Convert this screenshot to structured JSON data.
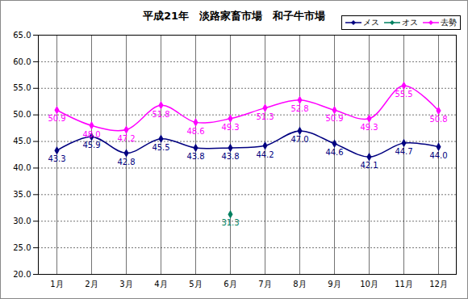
{
  "chart_data": {
    "type": "line",
    "title": "平成21年　淡路家畜市場　和子牛市場",
    "categories": [
      "1月",
      "2月",
      "3月",
      "4月",
      "5月",
      "6月",
      "7月",
      "8月",
      "9月",
      "10月",
      "11月",
      "12月"
    ],
    "series": [
      {
        "name": "メス",
        "color": "#000080",
        "values": [
          43.3,
          45.9,
          42.8,
          45.5,
          43.8,
          43.8,
          44.2,
          47.0,
          44.6,
          42.1,
          44.7,
          44.0
        ],
        "value_labels": [
          "43.3",
          "45.9",
          "42.8",
          "45.5",
          "43.8",
          "43.8",
          "44.2",
          "47.0",
          "44.6",
          "42.1",
          "44.7",
          "44.0"
        ]
      },
      {
        "name": "オス",
        "color": "#008060",
        "values": [
          null,
          null,
          null,
          null,
          null,
          31.3,
          null,
          null,
          null,
          null,
          null,
          null
        ],
        "value_labels": [
          null,
          null,
          null,
          null,
          null,
          "31.3",
          null,
          null,
          null,
          null,
          null,
          null
        ]
      },
      {
        "name": "去勢",
        "color": "#ff00ff",
        "values": [
          50.9,
          48.0,
          47.2,
          51.8,
          48.6,
          49.3,
          51.3,
          52.8,
          50.9,
          49.3,
          55.5,
          50.8
        ],
        "value_labels": [
          "50.9",
          "48.0",
          "47.2",
          "51.8",
          "48.6",
          "49.3",
          "51.3",
          "52.8",
          "50.9",
          "49.3",
          "55.5",
          "50.8"
        ]
      }
    ],
    "ylim": [
      20,
      65
    ],
    "yticks": [
      {
        "value": 20,
        "label": "20.0"
      },
      {
        "value": 25,
        "label": "25.0"
      },
      {
        "value": 30,
        "label": "30.0"
      },
      {
        "value": 35,
        "label": "35.0"
      },
      {
        "value": 40,
        "label": "40.0"
      },
      {
        "value": 45,
        "label": "45.0"
      },
      {
        "value": 50,
        "label": "50.0"
      },
      {
        "value": 55,
        "label": "55.0"
      },
      {
        "value": 60,
        "label": "60.0"
      },
      {
        "value": 65,
        "label": "65.0"
      }
    ],
    "grid": true,
    "legend": "top-right",
    "data_labels": true,
    "marker": "diamond",
    "line_style": "smooth"
  }
}
